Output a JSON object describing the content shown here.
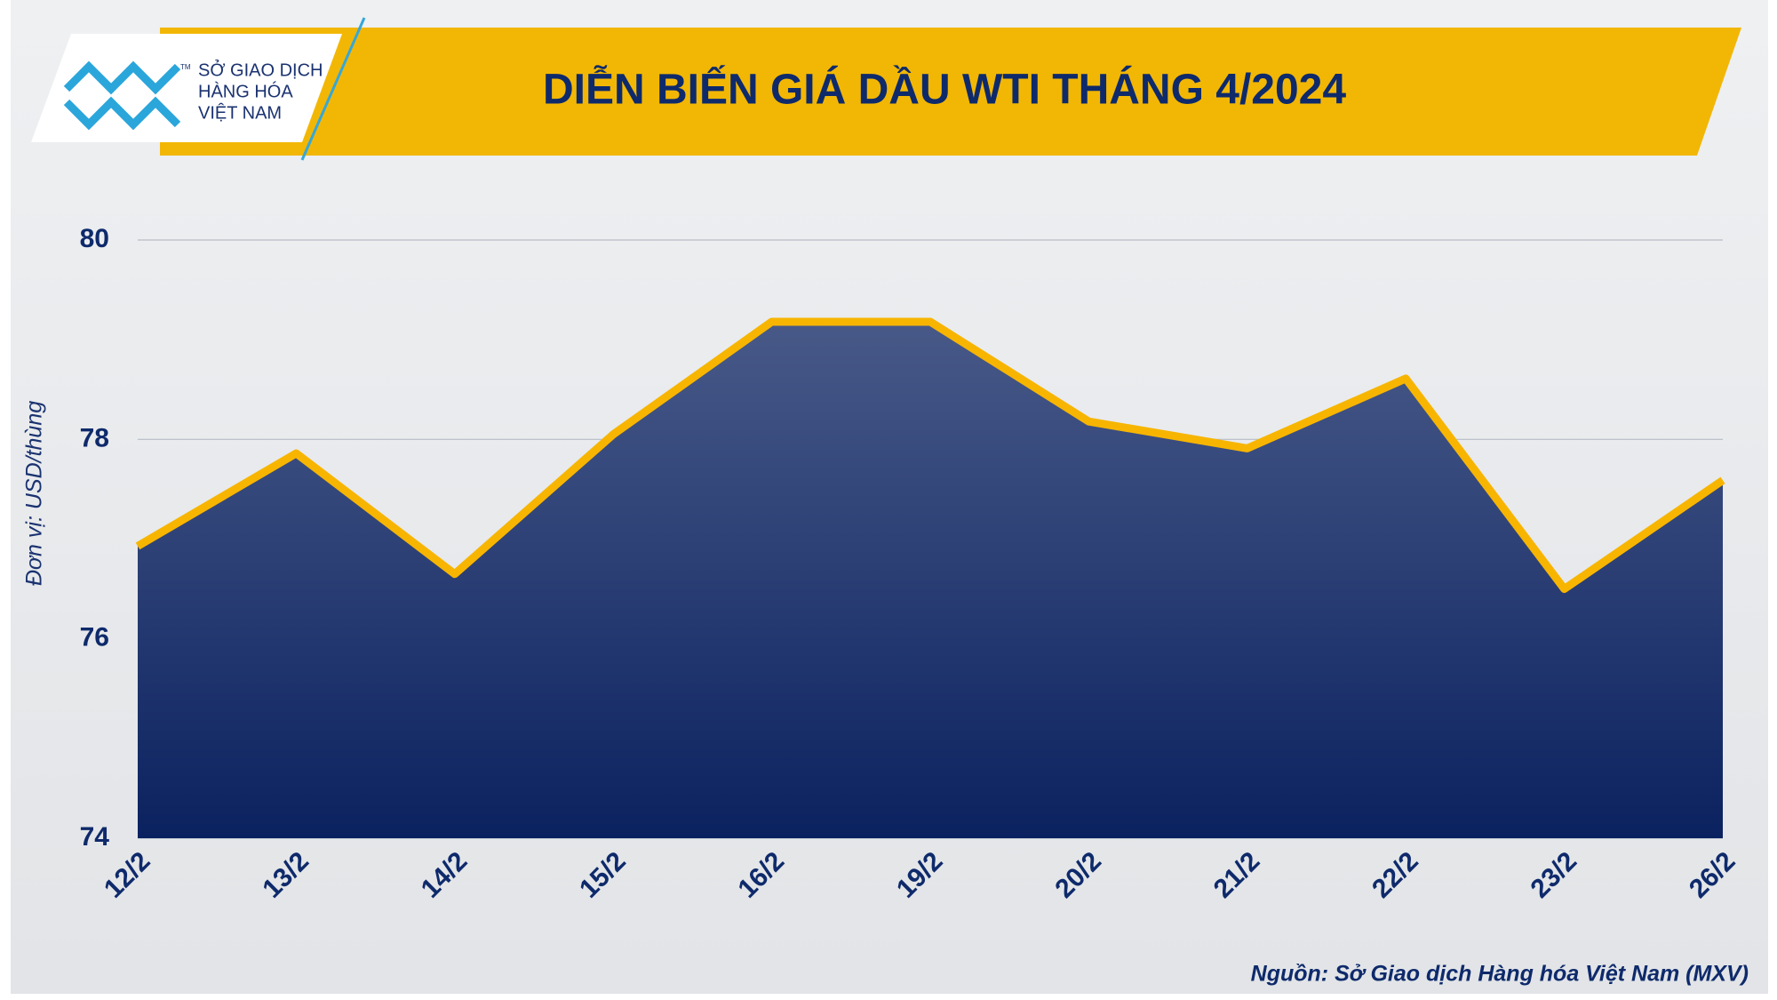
{
  "logo": {
    "lines": [
      "SỞ GIAO DỊCH",
      "HÀNG HÓA",
      "VIỆT NAM"
    ],
    "mark": "TM"
  },
  "chart_data": {
    "type": "area",
    "title": "DIỄN BIẾN GIÁ DẦU WTI THÁNG 4/2024",
    "y_label": "Đơn vị: USD/thùng",
    "source": "Nguồn: Sở Giao dịch Hàng hóa Việt Nam (MXV)",
    "categories": [
      "12/2",
      "13/2",
      "14/2",
      "15/2",
      "16/2",
      "19/2",
      "20/2",
      "21/2",
      "22/2",
      "23/2",
      "26/2"
    ],
    "series": [
      {
        "name": "WTI",
        "color": "#f7b500",
        "area_color": "#0b2260",
        "values": [
          76.93,
          77.86,
          76.65,
          78.05,
          79.18,
          79.18,
          78.18,
          77.91,
          78.61,
          76.5,
          77.59
        ]
      }
    ],
    "ylim": [
      74,
      80
    ],
    "yticks": [
      74,
      76,
      78,
      80
    ],
    "grid": true
  }
}
